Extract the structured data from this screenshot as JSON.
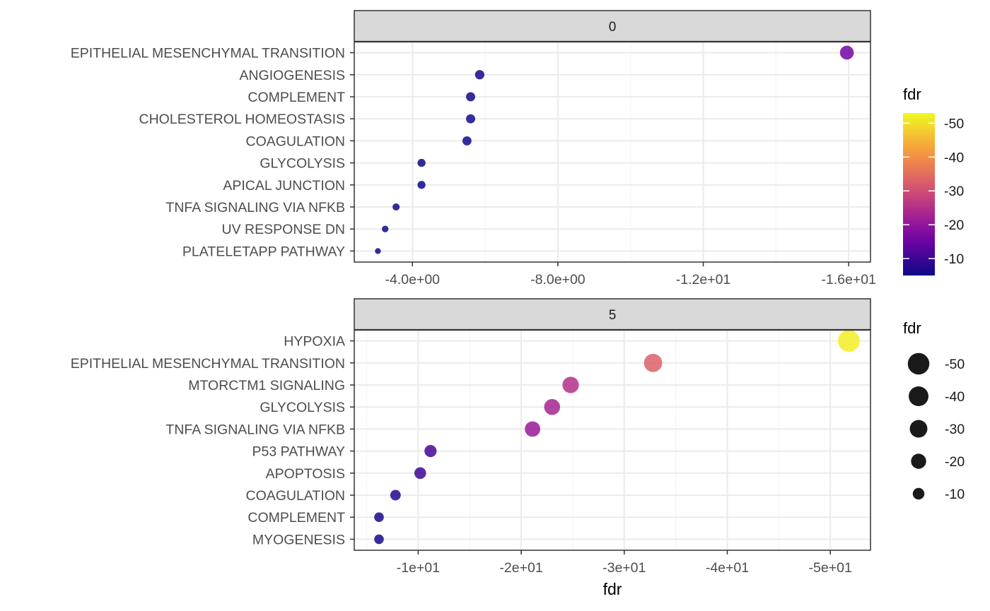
{
  "chart_data": [
    {
      "type": "scatter",
      "facet_label": "0",
      "categories": [
        "EPITHELIAL MESENCHYMAL TRANSITION",
        "ANGIOGENESIS",
        "COMPLEMENT",
        "CHOLESTEROL HOMEOSTASIS",
        "COAGULATION",
        "GLYCOLYSIS",
        "APICAL JUNCTION",
        "TNFA SIGNALING VIA NFKB",
        "UV RESPONSE DN",
        "PLATELETAPP PATHWAY"
      ],
      "values": [
        -15.95,
        -5.85,
        -5.6,
        -5.6,
        -5.5,
        -4.25,
        -4.25,
        -3.55,
        -3.25,
        -3.05
      ],
      "xlim": [
        -2.4,
        -16.6
      ],
      "x_ticks": [
        -4,
        -8,
        -12,
        -16
      ],
      "x_tick_labels": [
        "-4.0e+00",
        "-8.0e+00",
        "-1.2e+01",
        "-1.6e+01"
      ]
    },
    {
      "type": "scatter",
      "facet_label": "5",
      "categories": [
        "HYPOXIA",
        "EPITHELIAL MESENCHYMAL TRANSITION",
        "MTORCTM1 SIGNALING",
        "GLYCOLYSIS",
        "TNFA SIGNALING VIA NFKB",
        "P53 PATHWAY",
        "APOPTOSIS",
        "COAGULATION",
        "COMPLEMENT",
        "MYOGENESIS"
      ],
      "values": [
        -51.8,
        -32.8,
        -24.8,
        -23.0,
        -21.1,
        -11.2,
        -10.2,
        -7.8,
        -6.2,
        -6.2
      ],
      "xlim": [
        -3.8,
        -53.9
      ],
      "x_ticks": [
        -10,
        -20,
        -30,
        -40,
        -50
      ],
      "x_tick_labels": [
        "-1e+01",
        "-2e+01",
        "-3e+01",
        "-4e+01",
        "-5e+01"
      ]
    }
  ],
  "xlabel": "fdr",
  "grid": true,
  "legend_color": {
    "title": "fdr",
    "range": [
      -53,
      -5
    ],
    "ticks": [
      -50,
      -40,
      -30,
      -20,
      -10
    ],
    "tick_labels": [
      "-50",
      "-40",
      "-30",
      "-20",
      "-10"
    ],
    "colormap": "plasma"
  },
  "legend_size": {
    "title": "fdr",
    "values": [
      -50,
      -40,
      -30,
      -20,
      -10
    ],
    "labels": [
      "-50",
      "-40",
      "-30",
      "-20",
      "-10"
    ]
  },
  "colors": {
    "facet_strip": "#d9d9d9",
    "grid_major": "#ebebeb",
    "grid_minor": "#f5f5f5",
    "panel_border": "#333333",
    "size_legend_point": "#1a1a1a"
  }
}
